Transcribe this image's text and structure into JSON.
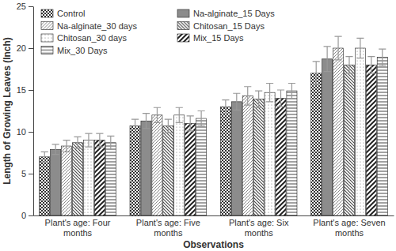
{
  "chart_data": {
    "type": "bar",
    "x_label": "Observations",
    "y_label": "Length of Growing Leaves (Inch)",
    "categories": [
      "Plant's age: Four months",
      "Plant's age: Five months",
      "Plant's age: Six months",
      "Plant's age: Seven months"
    ],
    "series": [
      {
        "name": "Control",
        "color": "#333333",
        "values": [
          7.0,
          10.7,
          13.0,
          17.0
        ],
        "errors": [
          0.6,
          0.8,
          0.8,
          1.4
        ]
      },
      {
        "name": "Na-alginate_15 Days",
        "color": "#8c8c8c",
        "values": [
          7.9,
          11.3,
          13.6,
          18.7
        ],
        "errors": [
          0.6,
          0.9,
          1.0,
          1.5
        ]
      },
      {
        "name": "Na-alginate_30 days",
        "color": "#555555",
        "values": [
          8.3,
          12.0,
          14.3,
          20.0
        ],
        "errors": [
          0.7,
          0.9,
          1.1,
          1.4
        ]
      },
      {
        "name": "Chitosan_15 Days",
        "color": "#444444",
        "values": [
          8.7,
          10.7,
          13.9,
          18.0
        ],
        "errors": [
          0.7,
          0.8,
          1.0,
          1.0
        ]
      },
      {
        "name": "Chitosan_30 days",
        "color": "#777777",
        "values": [
          9.0,
          12.0,
          14.7,
          20.0
        ],
        "errors": [
          0.8,
          0.9,
          1.1,
          1.2
        ]
      },
      {
        "name": "Mix_15 Days",
        "color": "#222222",
        "values": [
          9.0,
          11.0,
          14.0,
          18.0
        ],
        "errors": [
          0.8,
          0.9,
          1.0,
          1.0
        ]
      },
      {
        "name": "Mix_30 Days",
        "color": "#444444",
        "values": [
          8.7,
          11.6,
          14.9,
          18.9
        ],
        "errors": [
          0.8,
          0.9,
          0.9,
          1.0
        ]
      }
    ],
    "ylim": [
      0,
      25
    ],
    "yticks": [
      0,
      5,
      10,
      15,
      20,
      25
    ],
    "grid": false,
    "legend": "upper left"
  }
}
